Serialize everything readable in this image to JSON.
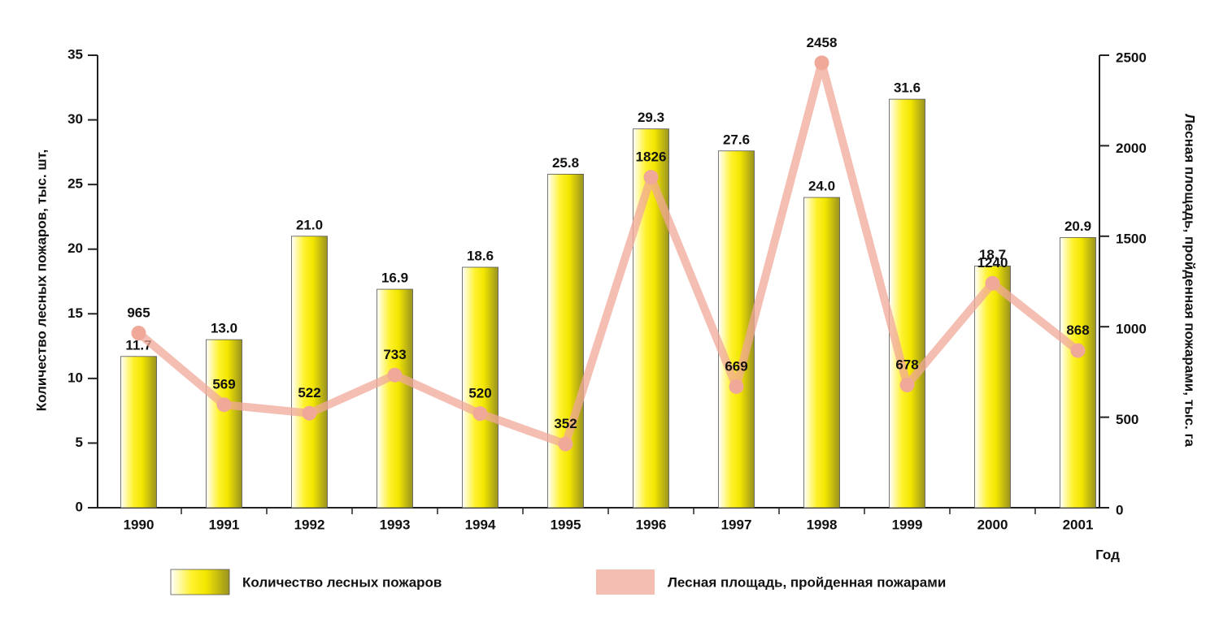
{
  "chart_data": {
    "type": "combo",
    "y_label": "Количество лесных пожаров, тыс. шт,",
    "y2_label": "Лесная площадь, пройденная пожарами, тыс. га",
    "x_label": "Год",
    "categories": [
      "1990",
      "1991",
      "1992",
      "1993",
      "1994",
      "1995",
      "1996",
      "1997",
      "1998",
      "1999",
      "2000",
      "2001"
    ],
    "series": [
      {
        "name": "Количество лесных пожаров",
        "type": "bar",
        "color": "#f2e600",
        "values": [
          11.7,
          13.0,
          21.0,
          16.9,
          18.6,
          25.8,
          29.3,
          27.6,
          24.0,
          31.6,
          18.7,
          20.9
        ],
        "value_labels": [
          "11.7",
          "13.0",
          "21.0",
          "16.9",
          "18.6",
          "25.8",
          "29.3",
          "27.6",
          "24.0",
          "31.6",
          "18.7",
          "20.9"
        ]
      },
      {
        "name": "Лесная площадь, пройденная пожарами",
        "type": "line",
        "axis": "y2",
        "color": "#f0a898",
        "values": [
          965,
          569,
          522,
          733,
          520,
          352,
          1826,
          669,
          2458,
          678,
          1240,
          868
        ]
      }
    ],
    "ylim": [
      0,
      35
    ],
    "yticks": [
      0,
      5,
      10,
      15,
      20,
      25,
      30,
      35
    ],
    "y2lim": [
      0,
      2500
    ],
    "y2ticks": [
      0,
      500,
      1000,
      1500,
      2000,
      2500
    ],
    "legend": "bottom"
  }
}
